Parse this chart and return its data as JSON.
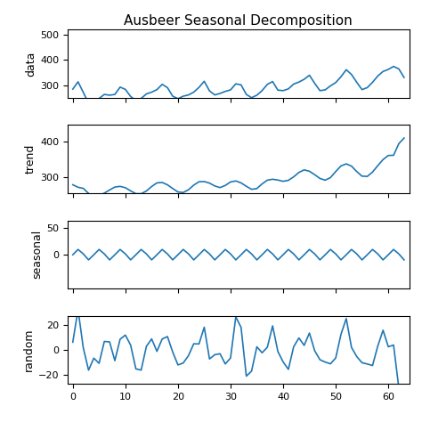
{
  "title": "Ausbeer Seasonal Decomposition",
  "line_color": "#1f77b4",
  "background_color": "#ffffff",
  "xlim": [
    -1,
    64
  ],
  "data_ylim": [
    250,
    520
  ],
  "trend_ylim": [
    255,
    445
  ],
  "seasonal_ylim": [
    -65,
    65
  ],
  "random_ylim": [
    -27,
    27
  ],
  "data_yticks": [
    300,
    400,
    500
  ],
  "trend_yticks": [
    300,
    400
  ],
  "seasonal_yticks": [
    0,
    50
  ],
  "random_yticks": [
    -20,
    0,
    20
  ],
  "ylabel_data": "data",
  "ylabel_trend": "trend",
  "ylabel_seasonal": "seasonal",
  "ylabel_random": "random",
  "ausbeer": [
    284,
    313,
    271,
    228,
    238,
    247,
    263,
    260,
    263,
    292,
    283,
    255,
    238,
    247,
    265,
    272,
    282,
    303,
    290,
    256,
    246,
    256,
    261,
    272,
    291,
    315,
    277,
    261,
    267,
    275,
    281,
    305,
    301,
    263,
    250,
    260,
    278,
    303,
    314,
    280,
    278,
    285,
    304,
    312,
    323,
    339,
    307,
    278,
    281,
    297,
    310,
    333,
    361,
    342,
    311,
    282,
    290,
    311,
    336,
    354,
    362,
    374,
    364,
    330
  ]
}
